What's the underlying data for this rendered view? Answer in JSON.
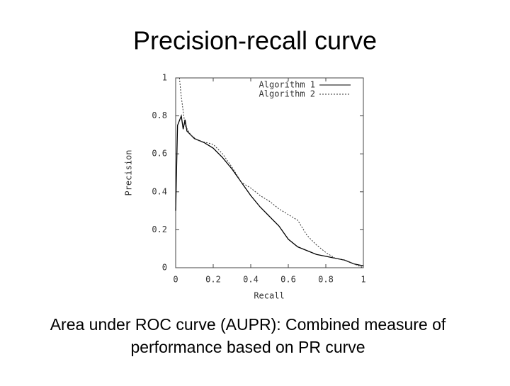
{
  "title": "Precision-recall curve",
  "chart_data": {
    "type": "line",
    "xlabel": "Recall",
    "ylabel": "Precision",
    "xlim": [
      0,
      1
    ],
    "ylim": [
      0,
      1
    ],
    "xticks": [
      0,
      0.2,
      0.4,
      0.6,
      0.8,
      1
    ],
    "yticks": [
      0,
      0.2,
      0.4,
      0.6,
      0.8,
      1
    ],
    "legend": "top-right",
    "series": [
      {
        "name": "Algorithm 1",
        "color": "#000000",
        "dash": "solid",
        "x": [
          0,
          0.01,
          0.03,
          0.04,
          0.05,
          0.06,
          0.08,
          0.1,
          0.15,
          0.2,
          0.25,
          0.3,
          0.35,
          0.4,
          0.45,
          0.5,
          0.55,
          0.6,
          0.65,
          0.7,
          0.75,
          0.8,
          0.85,
          0.9,
          0.95,
          1
        ],
        "values": [
          0.3,
          0.75,
          0.8,
          0.73,
          0.78,
          0.72,
          0.7,
          0.68,
          0.66,
          0.63,
          0.58,
          0.52,
          0.45,
          0.38,
          0.32,
          0.27,
          0.22,
          0.15,
          0.11,
          0.09,
          0.07,
          0.06,
          0.05,
          0.04,
          0.02,
          0.01
        ]
      },
      {
        "name": "Algorithm 2",
        "color": "#333333",
        "dash": "dashed",
        "x": [
          0.02,
          0.03,
          0.05,
          0.08,
          0.12,
          0.2,
          0.25,
          0.3,
          0.35,
          0.4,
          0.45,
          0.5,
          0.55,
          0.6,
          0.65,
          0.7,
          0.75,
          0.8,
          0.85,
          0.9,
          0.95,
          1
        ],
        "values": [
          1,
          0.9,
          0.75,
          0.7,
          0.67,
          0.65,
          0.6,
          0.53,
          0.45,
          0.42,
          0.38,
          0.35,
          0.31,
          0.28,
          0.25,
          0.17,
          0.12,
          0.08,
          0.05,
          0.04,
          0.02,
          0
        ]
      }
    ]
  },
  "caption": [
    "Area under ROC curve (AUPR): Combined measure of",
    "performance based on PR curve"
  ]
}
